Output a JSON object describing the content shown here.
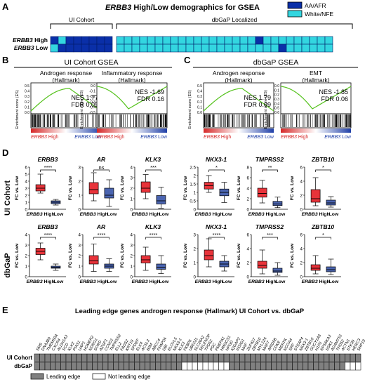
{
  "panels": {
    "A": {
      "label": "A",
      "title_gene": "ERBB3",
      "title_rest": " High/Low demographics for GSEA",
      "cohort_ui": "UI Cohort",
      "cohort_dbgap": "dbGaP Localized",
      "row_high_gene": "ERBB3",
      "row_high": " High",
      "row_low_gene": "ERBB3",
      "row_low": " Low",
      "legend_aa": "AA/AFR",
      "legend_white": "White/NFE",
      "colors": {
        "aa": "#0a2fa8",
        "white": "#33d6e0"
      },
      "ui_high": [
        0,
        1,
        0,
        0,
        0,
        0,
        0,
        0
      ],
      "ui_low": [
        1,
        0,
        0,
        0,
        0,
        0,
        0,
        0
      ],
      "db_high": [
        1,
        1,
        1,
        1,
        1,
        1,
        1,
        1,
        1,
        1,
        1,
        1,
        1,
        1,
        1,
        1,
        1,
        1,
        0,
        1,
        1,
        1,
        1,
        1,
        1,
        1,
        1,
        1
      ],
      "db_low": [
        1,
        1,
        1,
        1,
        1,
        1,
        1,
        1,
        1,
        1,
        1,
        1,
        1,
        1,
        1,
        1,
        1,
        1,
        1,
        1,
        1,
        0,
        1,
        1,
        1,
        1,
        1,
        1
      ]
    },
    "B": {
      "label": "B",
      "title": "UI Cohort GSEA",
      "plots": [
        {
          "name": "Androgen response",
          "sub": "(Hallmark)",
          "nes": "NES 1.77",
          "fdr": "FDR 0.09",
          "yticks": [
            "0.5",
            "0.4",
            "0.3",
            "0.2",
            "0.1",
            "0.0"
          ]
        },
        {
          "name": "Inflammatory response",
          "sub": "(Hallmark)",
          "nes": "NES -1.69",
          "fdr": "FDR 0.16",
          "yticks": [
            "0.0",
            "-0.1",
            "-0.2",
            "-0.3",
            "-0.4",
            "-0.5"
          ]
        }
      ],
      "ylabel": "Enrichment score (ES)",
      "high_gene": "ERBB3",
      "high": " High",
      "low_gene": "ERBB3",
      "low": " Low"
    },
    "C": {
      "label": "C",
      "title": "dbGaP GSEA",
      "plots": [
        {
          "name": "Androgen response",
          "sub": "(Hallmark)",
          "nes": "NES 1.79",
          "fdr": "FDR 0.09",
          "yticks": [
            "0.5",
            "0.4",
            "0.3",
            "0.2",
            "0.1",
            "0.0"
          ]
        },
        {
          "name": "EMT",
          "sub": "(Hallmark)",
          "nes": "NES -1.85",
          "fdr": "FDR 0.06",
          "yticks": [
            "0.0",
            "-0.1",
            "-0.2",
            "-0.3",
            "-0.4",
            "-0.5",
            "-0.6"
          ]
        }
      ],
      "ylabel": "Enrichment score (ES)",
      "high_gene": "ERBB3",
      "high": " High",
      "low_gene": "ERBB3",
      "low": " Low"
    },
    "D": {
      "label": "D",
      "row_ui": "UI Cohort",
      "row_db": "dbGaP",
      "ylabel": "FC vs. Low",
      "x_high_gene": "ERBB3",
      "x_high": " High",
      "x_low": "Low",
      "colors": {
        "high": "#e8333a",
        "low": "#4a64b0"
      }
    },
    "E": {
      "label": "E",
      "title": "Leading edge genes androgen response (Hallmark) UI Cohort vs. dbGaP",
      "row_ui": "UI Cohort",
      "row_db": "dbGaP",
      "legend_leading": "Leading edge",
      "legend_not": "Not leading edge",
      "genes": [
        "SMS",
        "DNAJB9",
        "TMEM50A",
        "CXCR4",
        "ALDH1A3",
        "SCD",
        "KLK2",
        "PIAS1",
        "UAP1",
        "HOMER2",
        "NDRG1",
        "SORD",
        "AZGP1",
        "CCND1",
        "TMPRSS2",
        "ELL2",
        "FADS2",
        "KRT19",
        "SPDEF",
        "ELK4",
        "ACSL3",
        "B2M",
        "ABCC4",
        "PPAP2A",
        "DBI",
        "ELOVL5",
        "NKX3-1",
        "KLK3",
        "FKBP5",
        "UBE2J1",
        "SLC26A2",
        "SELENOP",
        "TPD52",
        "PGC",
        "PMEPA1",
        "HMGCS1",
        "HPGD",
        "IQGAP2",
        "INSIG1",
        "MAF",
        "ZNF427",
        "ZBTB10",
        "MYL12A",
        "MAP7",
        "ARID5B",
        "CDK8",
        "MERTK",
        "NCOA4",
        "SRF",
        "STEAP4",
        "NKX3-1",
        "ZBTB10",
        "GUCY1A3",
        "H1F0",
        "RPS6KA3",
        "SGK1",
        "ADAMTS1",
        "TPD52",
        "ACTN1",
        "STK39",
        "HERC3",
        "SRP19"
      ],
      "ui_cells": [
        1,
        1,
        1,
        1,
        1,
        1,
        1,
        1,
        1,
        1,
        1,
        1,
        1,
        1,
        1,
        1,
        1,
        1,
        1,
        1,
        1,
        1,
        1,
        1,
        1,
        1,
        1,
        1,
        1,
        1,
        1,
        1,
        1,
        1,
        1,
        1,
        1,
        1,
        1,
        1,
        1,
        1,
        1,
        1,
        1,
        1,
        1,
        1,
        1,
        1,
        1,
        1,
        1,
        1,
        1,
        1,
        1,
        1,
        1,
        1,
        1,
        1
      ],
      "db_cells": [
        1,
        1,
        1,
        1,
        1,
        1,
        1,
        1,
        1,
        1,
        1,
        1,
        1,
        1,
        1,
        1,
        1,
        1,
        1,
        1,
        1,
        1,
        1,
        1,
        1,
        1,
        1,
        1,
        0,
        0,
        0,
        0,
        0,
        0,
        0,
        0,
        0,
        1,
        1,
        1,
        1,
        1,
        1,
        1,
        1,
        1,
        1,
        1,
        1,
        1,
        1,
        1,
        1,
        1,
        1,
        1,
        1,
        1,
        1,
        0,
        0,
        0
      ],
      "colors": {
        "leading": "#808080",
        "not": "#ffffff"
      }
    }
  },
  "chart_data": [
    {
      "type": "box",
      "row": "UI Cohort",
      "gene": "ERBB3",
      "categories": [
        "ERBB3 High",
        "Low"
      ],
      "significance": "****",
      "yticks": [
        0,
        1,
        2,
        3,
        4,
        5,
        6
      ],
      "series": [
        {
          "name": "High",
          "min": 2.3,
          "q1": 2.6,
          "median": 3.0,
          "q3": 3.5,
          "max": 5.0
        },
        {
          "name": "Low",
          "min": 0.6,
          "q1": 0.8,
          "median": 1.0,
          "q3": 1.2,
          "max": 1.4
        }
      ]
    },
    {
      "type": "box",
      "row": "UI Cohort",
      "gene": "AR",
      "categories": [
        "ERBB3 High",
        "Low"
      ],
      "significance": "ns",
      "yticks": [
        0,
        1,
        2,
        3
      ],
      "series": [
        {
          "name": "High",
          "min": 0.6,
          "q1": 1.1,
          "median": 1.4,
          "q3": 1.9,
          "max": 2.6
        },
        {
          "name": "Low",
          "min": 0.2,
          "q1": 0.8,
          "median": 1.0,
          "q3": 1.5,
          "max": 2.1
        }
      ]
    },
    {
      "type": "box",
      "row": "UI Cohort",
      "gene": "KLK3",
      "categories": [
        "ERBB3 High",
        "Low"
      ],
      "significance": "***",
      "yticks": [
        0,
        1,
        2,
        3,
        4
      ],
      "series": [
        {
          "name": "High",
          "min": 1.0,
          "q1": 1.6,
          "median": 2.0,
          "q3": 2.6,
          "max": 3.3
        },
        {
          "name": "Low",
          "min": 0.1,
          "q1": 0.5,
          "median": 0.8,
          "q3": 1.3,
          "max": 2.1
        }
      ]
    },
    {
      "type": "box",
      "row": "UI Cohort",
      "gene": "NKX3-1",
      "categories": [
        "ERBB3 High",
        "Low"
      ],
      "significance": "*",
      "yticks": [
        0,
        0.5,
        1,
        1.5,
        2,
        2.5
      ],
      "series": [
        {
          "name": "High",
          "min": 1.0,
          "q1": 1.2,
          "median": 1.4,
          "q3": 1.6,
          "max": 2.0
        },
        {
          "name": "Low",
          "min": 0.4,
          "q1": 0.8,
          "median": 1.0,
          "q3": 1.2,
          "max": 1.6
        }
      ]
    },
    {
      "type": "box",
      "row": "UI Cohort",
      "gene": "TMPRSS2",
      "categories": [
        "ERBB3 High",
        "Low"
      ],
      "significance": "**",
      "yticks": [
        0,
        2,
        4,
        6,
        8
      ],
      "series": [
        {
          "name": "High",
          "min": 1.2,
          "q1": 2.3,
          "median": 3.0,
          "q3": 4.0,
          "max": 5.5
        },
        {
          "name": "Low",
          "min": 0.3,
          "q1": 0.7,
          "median": 1.0,
          "q3": 1.5,
          "max": 2.3
        }
      ]
    },
    {
      "type": "box",
      "row": "UI Cohort",
      "gene": "ZBTB10",
      "categories": [
        "ERBB3 High",
        "Low"
      ],
      "significance": "*",
      "yticks": [
        0,
        2,
        4,
        6
      ],
      "series": [
        {
          "name": "High",
          "min": 0.5,
          "q1": 1.0,
          "median": 1.5,
          "q3": 2.8,
          "max": 4.5
        },
        {
          "name": "Low",
          "min": 0.3,
          "q1": 0.6,
          "median": 0.9,
          "q3": 1.3,
          "max": 1.8
        }
      ]
    },
    {
      "type": "box",
      "row": "dbGaP",
      "gene": "ERBB3",
      "categories": [
        "ERBB3 High",
        "Low"
      ],
      "significance": "****",
      "yticks": [
        0,
        1,
        2,
        3,
        4
      ],
      "series": [
        {
          "name": "High",
          "min": 1.6,
          "q1": 2.1,
          "median": 2.4,
          "q3": 2.7,
          "max": 3.2
        },
        {
          "name": "Low",
          "min": 0.6,
          "q1": 0.8,
          "median": 0.9,
          "q3": 1.0,
          "max": 1.2
        }
      ]
    },
    {
      "type": "box",
      "row": "dbGaP",
      "gene": "AR",
      "categories": [
        "ERBB3 High",
        "Low"
      ],
      "significance": "****",
      "yticks": [
        0,
        1,
        2,
        3,
        4
      ],
      "series": [
        {
          "name": "High",
          "min": 0.5,
          "q1": 1.2,
          "median": 1.5,
          "q3": 2.0,
          "max": 3.1
        },
        {
          "name": "Low",
          "min": 0.5,
          "q1": 0.8,
          "median": 1.0,
          "q3": 1.2,
          "max": 1.7
        }
      ]
    },
    {
      "type": "box",
      "row": "dbGaP",
      "gene": "KLK3",
      "categories": [
        "ERBB3 High",
        "Low"
      ],
      "significance": "****",
      "yticks": [
        0,
        1,
        2,
        3,
        4
      ],
      "series": [
        {
          "name": "High",
          "min": 0.6,
          "q1": 1.3,
          "median": 1.6,
          "q3": 2.0,
          "max": 2.8
        },
        {
          "name": "Low",
          "min": 0.3,
          "q1": 0.7,
          "median": 0.9,
          "q3": 1.2,
          "max": 2.0
        }
      ]
    },
    {
      "type": "box",
      "row": "dbGaP",
      "gene": "NKX3-1",
      "categories": [
        "ERBB3 High",
        "Low"
      ],
      "significance": "****",
      "yticks": [
        0,
        1,
        2,
        3
      ],
      "series": [
        {
          "name": "High",
          "min": 0.7,
          "q1": 1.2,
          "median": 1.5,
          "q3": 1.9,
          "max": 2.7
        },
        {
          "name": "Low",
          "min": 0.4,
          "q1": 0.7,
          "median": 0.9,
          "q3": 1.1,
          "max": 1.5
        }
      ]
    },
    {
      "type": "box",
      "row": "dbGaP",
      "gene": "TMPRSS2",
      "categories": [
        "ERBB3 High",
        "Low"
      ],
      "significance": "***",
      "yticks": [
        0,
        2,
        4,
        6
      ],
      "series": [
        {
          "name": "High",
          "min": 0.4,
          "q1": 1.2,
          "median": 1.6,
          "q3": 2.2,
          "max": 3.8
        },
        {
          "name": "Low",
          "min": 0.2,
          "q1": 0.6,
          "median": 0.8,
          "q3": 1.2,
          "max": 2.0
        }
      ]
    },
    {
      "type": "box",
      "row": "dbGaP",
      "gene": "ZBTB10",
      "categories": [
        "ERBB3 High",
        "Low"
      ],
      "significance": "*",
      "yticks": [
        0,
        2,
        4,
        6
      ],
      "series": [
        {
          "name": "High",
          "min": 0.4,
          "q1": 0.9,
          "median": 1.2,
          "q3": 1.7,
          "max": 3.0
        },
        {
          "name": "Low",
          "min": 0.3,
          "q1": 0.7,
          "median": 1.0,
          "q3": 1.4,
          "max": 2.5
        }
      ]
    }
  ]
}
